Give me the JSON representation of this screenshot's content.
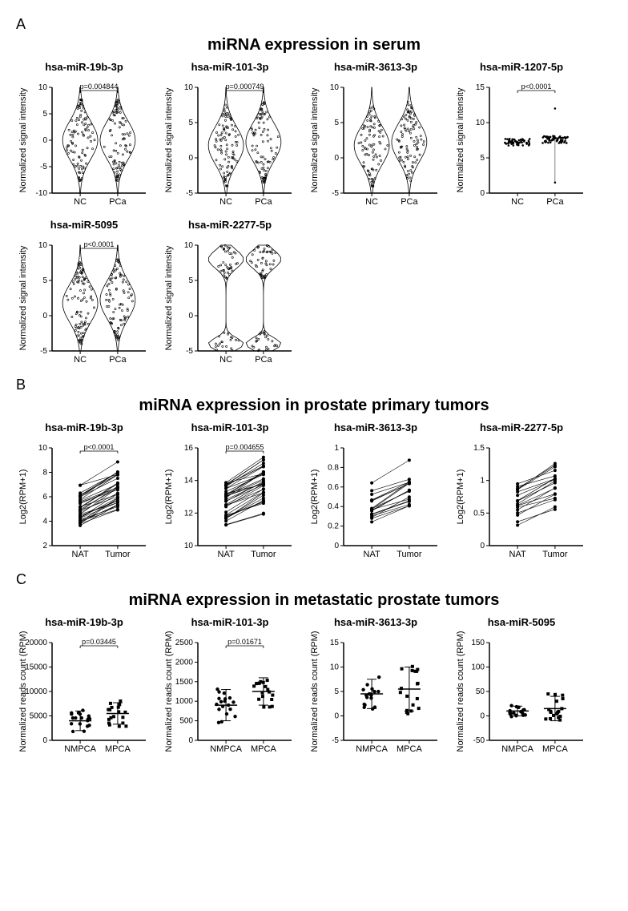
{
  "panelA": {
    "label": "A",
    "title": "miRNA expression in serum",
    "ylabel": "Normalized signal intensity",
    "xcats": [
      "NC",
      "PCa"
    ],
    "row1": [
      {
        "title": "hsa-miR-19b-3p",
        "pval": "p=0.004844",
        "ylim": [
          -10,
          10
        ],
        "yticks": [
          -10,
          -5,
          0,
          5,
          10
        ],
        "type": "violin"
      },
      {
        "title": "hsa-miR-101-3p",
        "pval": "p=0.000749",
        "ylim": [
          -5,
          10
        ],
        "yticks": [
          -5,
          0,
          5,
          10
        ],
        "type": "violin"
      },
      {
        "title": "hsa-miR-3613-3p",
        "pval": "",
        "ylim": [
          -5,
          10
        ],
        "yticks": [
          -5,
          0,
          5,
          10
        ],
        "type": "violin"
      },
      {
        "title": "hsa-miR-1207-5p",
        "pval": "p<0.0001",
        "ylim": [
          0,
          15
        ],
        "yticks": [
          0,
          5,
          10,
          15
        ],
        "type": "scatter_narrow"
      }
    ],
    "row2": [
      {
        "title": "hsa-miR-5095",
        "pval": "p<0.0001",
        "ylim": [
          -5,
          10
        ],
        "yticks": [
          -5,
          0,
          5,
          10
        ],
        "type": "violin"
      },
      {
        "title": "hsa-miR-2277-5p",
        "pval": "",
        "ylim": [
          -5,
          10
        ],
        "yticks": [
          -5,
          0,
          5,
          10
        ],
        "type": "violin_bimodal"
      }
    ]
  },
  "panelB": {
    "label": "B",
    "title": "miRNA expression in prostate primary tumors",
    "ylabel": "Log2(RPM+1)",
    "xcats": [
      "NAT",
      "Tumor"
    ],
    "plots": [
      {
        "title": "hsa-miR-19b-3p",
        "pval": "p<0.0001",
        "ylim": [
          2,
          10
        ],
        "yticks": [
          2,
          4,
          6,
          8,
          10
        ],
        "pairs": 35
      },
      {
        "title": "hsa-miR-101-3p",
        "pval": "p=0.004655",
        "ylim": [
          10,
          16
        ],
        "yticks": [
          10,
          12,
          14,
          16
        ],
        "pairs": 35
      },
      {
        "title": "hsa-miR-3613-3p",
        "pval": "",
        "ylim": [
          0,
          1.0
        ],
        "yticks": [
          0,
          0.2,
          0.4,
          0.6,
          0.8,
          1.0
        ],
        "pairs": 18
      },
      {
        "title": "hsa-miR-2277-5p",
        "pval": "",
        "ylim": [
          0,
          1.5
        ],
        "yticks": [
          0,
          0.5,
          1.0,
          1.5
        ],
        "pairs": 18
      }
    ]
  },
  "panelC": {
    "label": "C",
    "title": "miRNA expression in metastatic prostate tumors",
    "ylabel": "Normalized reads count (RPM)",
    "xcats": [
      "NMPCA",
      "MPCA"
    ],
    "plots": [
      {
        "title": "hsa-miR-19b-3p",
        "pval": "p=0.03445",
        "ylim": [
          0,
          20000
        ],
        "yticks": [
          0,
          5000,
          10000,
          15000,
          20000
        ],
        "means": [
          4000,
          5500
        ],
        "sd": [
          2000,
          2200
        ]
      },
      {
        "title": "hsa-miR-101-3p",
        "pval": "p=0.01671",
        "ylim": [
          0,
          2500
        ],
        "yticks": [
          0,
          500,
          1000,
          1500,
          2000,
          2500
        ],
        "means": [
          900,
          1250
        ],
        "sd": [
          400,
          350
        ]
      },
      {
        "title": "hsa-miR-3613-3p",
        "pval": "",
        "ylim": [
          -5,
          15
        ],
        "yticks": [
          -5,
          0,
          5,
          10,
          15
        ],
        "means": [
          4.5,
          5.5
        ],
        "sd": [
          3,
          4.5
        ]
      },
      {
        "title": "hsa-miR-5095",
        "pval": "",
        "ylim": [
          -50,
          150
        ],
        "yticks": [
          -50,
          0,
          50,
          100,
          150
        ],
        "means": [
          10,
          15
        ],
        "sd": [
          10,
          25
        ]
      }
    ]
  },
  "colors": {
    "axis": "#000000",
    "mark": "#000000",
    "bg": "#ffffff"
  }
}
